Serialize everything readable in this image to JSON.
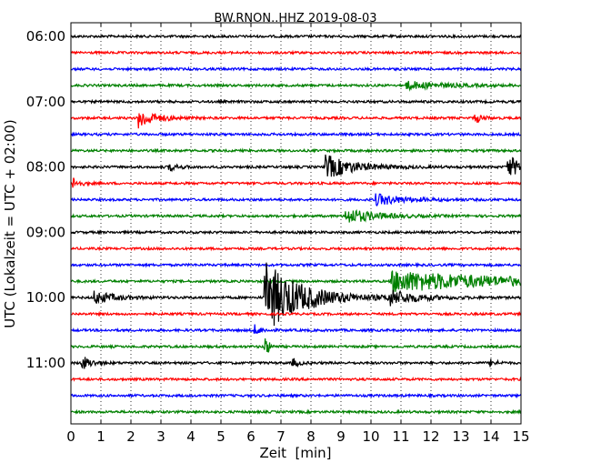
{
  "chart_data": {
    "type": "line",
    "title": "BW.RNON..HHZ 2019-08-03",
    "xlabel": "Zeit  [min]",
    "ylabel": "UTC (Lokalzeit = UTC + 02:00)",
    "xlim": [
      0,
      15
    ],
    "x_ticks": [
      "0",
      "1",
      "2",
      "3",
      "4",
      "5",
      "6",
      "7",
      "8",
      "9",
      "10",
      "11",
      "12",
      "13",
      "14",
      "15"
    ],
    "y_ticks": [
      "06:00",
      "07:00",
      "08:00",
      "09:00",
      "10:00",
      "11:00"
    ],
    "grid": "vertical dotted",
    "trace_interval_min": 15,
    "trace_colors": [
      "#000000",
      "#ff0000",
      "#0000ff",
      "#008000"
    ],
    "traces": [
      {
        "start": "06:00",
        "events": []
      },
      {
        "start": "06:15",
        "events": []
      },
      {
        "start": "06:30",
        "events": []
      },
      {
        "start": "06:45",
        "events": [
          {
            "t": 11.2,
            "amp": 0.35,
            "dur": 1.2
          }
        ]
      },
      {
        "start": "07:00",
        "events": []
      },
      {
        "start": "07:15",
        "events": [
          {
            "t": 2.3,
            "amp": 0.9,
            "dur": 0.5
          },
          {
            "t": 13.5,
            "amp": 0.4,
            "dur": 0.2
          }
        ]
      },
      {
        "start": "07:30",
        "events": []
      },
      {
        "start": "07:45",
        "events": []
      },
      {
        "start": "08:00",
        "events": [
          {
            "t": 3.3,
            "amp": 0.3,
            "dur": 0.3
          },
          {
            "t": 8.5,
            "amp": 1.1,
            "dur": 0.9
          },
          {
            "t": 14.6,
            "amp": 0.9,
            "dur": 0.6
          }
        ]
      },
      {
        "start": "08:15",
        "events": [
          {
            "t": 0.1,
            "amp": 0.5,
            "dur": 0.2
          }
        ]
      },
      {
        "start": "08:30",
        "events": [
          {
            "t": 10.2,
            "amp": 0.5,
            "dur": 0.9
          }
        ]
      },
      {
        "start": "08:45",
        "events": [
          {
            "t": 9.2,
            "amp": 0.7,
            "dur": 0.9
          }
        ]
      },
      {
        "start": "09:00",
        "events": []
      },
      {
        "start": "09:15",
        "events": []
      },
      {
        "start": "09:30",
        "events": []
      },
      {
        "start": "09:45",
        "events": [
          {
            "t": 10.7,
            "amp": 1.0,
            "dur": 3.8
          }
        ]
      },
      {
        "start": "10:00",
        "events": [
          {
            "t": 6.5,
            "amp": 3.2,
            "dur": 1.2
          },
          {
            "t": 0.8,
            "amp": 0.6,
            "dur": 0.6
          },
          {
            "t": 10.6,
            "amp": 0.7,
            "dur": 0.8
          }
        ]
      },
      {
        "start": "10:15",
        "events": []
      },
      {
        "start": "10:30",
        "events": [
          {
            "t": 6.1,
            "amp": 0.5,
            "dur": 0.2
          }
        ]
      },
      {
        "start": "10:45",
        "events": [
          {
            "t": 6.5,
            "amp": 1.0,
            "dur": 0.1
          }
        ]
      },
      {
        "start": "11:00",
        "events": [
          {
            "t": 0.4,
            "amp": 0.6,
            "dur": 0.3
          },
          {
            "t": 7.4,
            "amp": 0.4,
            "dur": 0.2
          },
          {
            "t": 14.0,
            "amp": 0.3,
            "dur": 0.2
          }
        ]
      },
      {
        "start": "11:15",
        "events": []
      },
      {
        "start": "11:30",
        "events": []
      },
      {
        "start": "11:45",
        "events": []
      }
    ]
  }
}
